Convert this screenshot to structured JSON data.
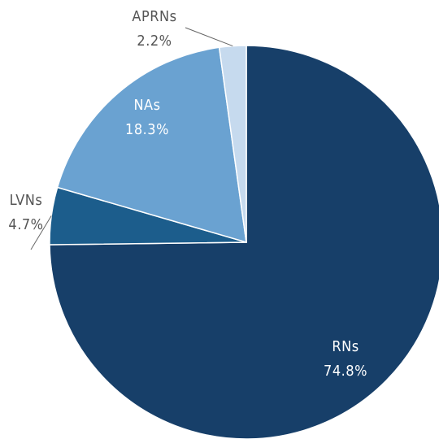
{
  "chart_data": {
    "type": "pie",
    "categories": [
      "RNs",
      "LVNs",
      "NAs",
      "APRNs"
    ],
    "values": [
      74.8,
      4.7,
      18.3,
      2.2
    ],
    "value_labels": [
      "74.8%",
      "4.7%",
      "18.3%",
      "2.2%"
    ],
    "colors": [
      "#173f69",
      "#1c5d8c",
      "#6aa2d1",
      "#c6daee"
    ]
  }
}
